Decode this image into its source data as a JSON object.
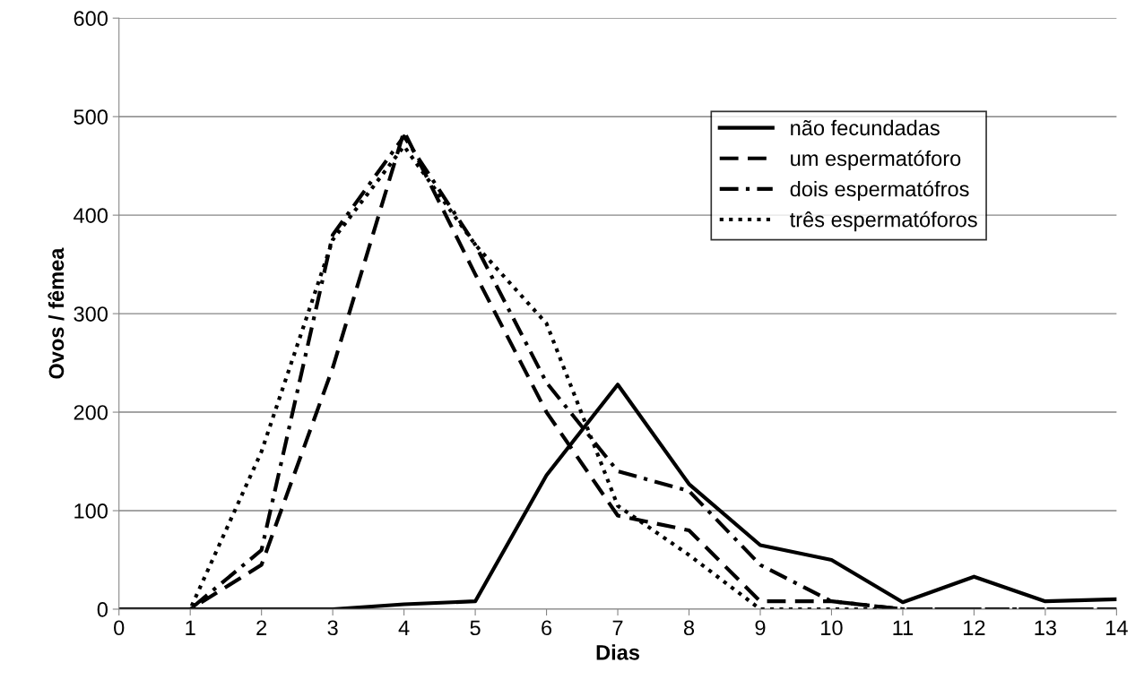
{
  "chart_data": {
    "type": "line",
    "xlabel": "Dias",
    "ylabel": "Ovos / fêmea",
    "x": [
      0,
      1,
      2,
      3,
      4,
      5,
      6,
      7,
      8,
      9,
      10,
      11,
      12,
      13,
      14
    ],
    "series": [
      {
        "name": "não fecundadas",
        "color": "#000000",
        "line_style": "solid",
        "values": [
          0,
          0,
          0,
          0,
          5,
          8,
          136,
          228,
          127,
          65,
          50,
          7,
          33,
          8,
          10
        ]
      },
      {
        "name": "um espermatóforo",
        "color": "#000000",
        "line_style": "dashed",
        "values": [
          0,
          0,
          45,
          245,
          485,
          340,
          200,
          95,
          80,
          8,
          8,
          0,
          0,
          0,
          0
        ]
      },
      {
        "name": "dois espermatófros",
        "color": "#000000",
        "line_style": "dashdot",
        "values": [
          0,
          0,
          60,
          380,
          480,
          370,
          230,
          140,
          120,
          45,
          8,
          0,
          0,
          0,
          0
        ]
      },
      {
        "name": "três espermatóforos",
        "color": "#000000",
        "line_style": "dotted",
        "values": [
          0,
          0,
          160,
          375,
          470,
          370,
          290,
          105,
          55,
          0,
          0,
          0,
          0,
          0,
          0
        ]
      }
    ],
    "xlim": [
      0,
      14
    ],
    "xticks": [
      0,
      1,
      2,
      3,
      4,
      5,
      6,
      7,
      8,
      9,
      10,
      11,
      12,
      13,
      14
    ],
    "ylim": [
      0,
      600
    ],
    "yticks": [
      0,
      100,
      200,
      300,
      400,
      500,
      600
    ],
    "grid": "y",
    "legend": "top right",
    "marker": "none"
  }
}
